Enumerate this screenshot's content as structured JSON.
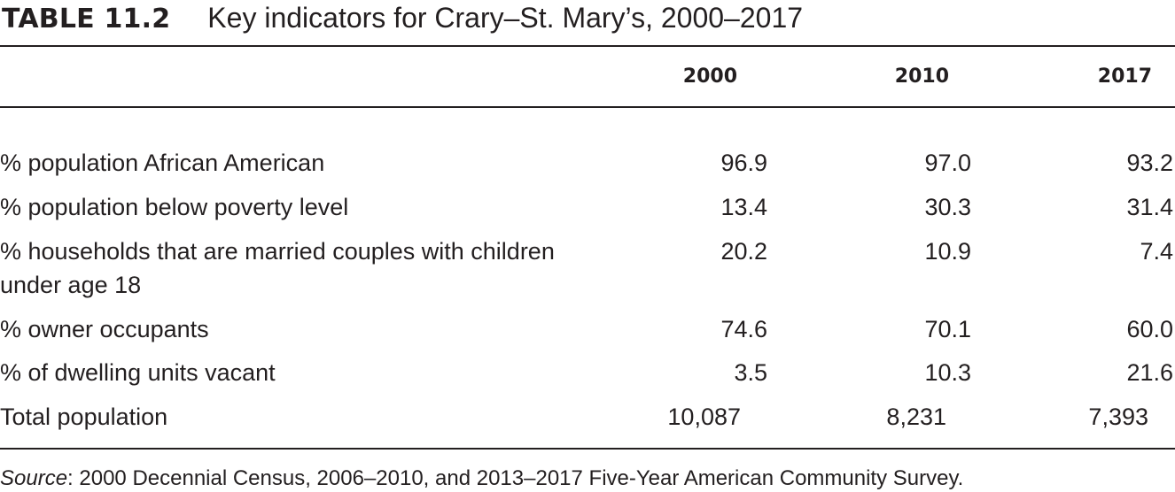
{
  "table": {
    "label": "TABLE 11.2",
    "title": "Key indicators for Crary–St. Mary’s, 2000–2017",
    "columns": [
      "2000",
      "2010",
      "2017"
    ],
    "rows": [
      {
        "label": "% population African American",
        "values": [
          "96.9",
          "97.0",
          "93.2"
        ]
      },
      {
        "label": "% population below poverty level",
        "values": [
          "13.4",
          "30.3",
          "31.4"
        ]
      },
      {
        "label": "% households that are married couples with children under age 18",
        "values": [
          "20.2",
          "10.9",
          "7.4"
        ]
      },
      {
        "label": "% owner occupants",
        "values": [
          "74.6",
          "70.1",
          "60.0"
        ]
      },
      {
        "label": "% of dwelling units vacant",
        "values": [
          "3.5",
          "10.3",
          "21.6"
        ]
      },
      {
        "label": "Total population",
        "values": [
          "10,087",
          "8,231",
          "7,393"
        ]
      }
    ],
    "source_label": "Source",
    "source_text": ": 2000 Decennial Census, 2006–2010, and 2013–2017 Five-Year American Community Survey."
  }
}
